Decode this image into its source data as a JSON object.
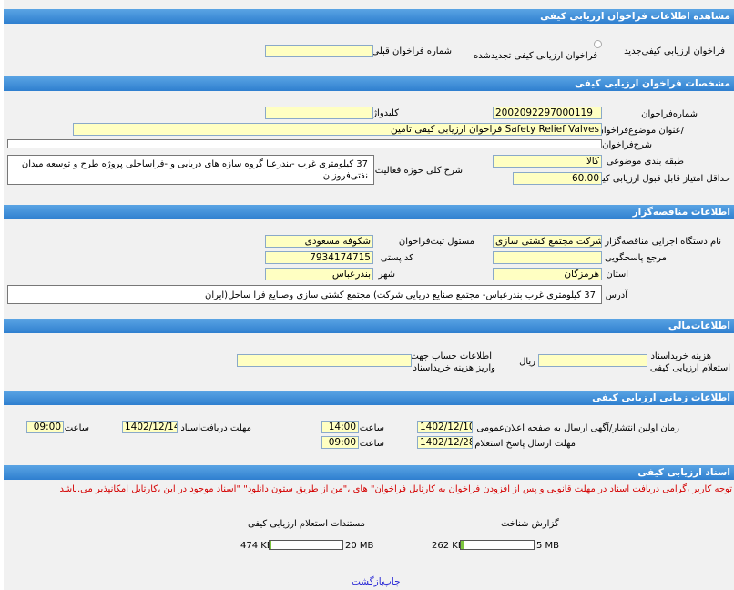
{
  "sections": {
    "view_title": "مشاهده اطلاعات فراخوان ارزیابی کیفی",
    "specs": "مشخصات فراخوان ارزیابی کیفی",
    "tenderer": "اطلاعات مناقصه‌گزار",
    "financial": "اطلاعات‌مالی",
    "timing": "اطلاعات زمانی ارزیابی کیفی",
    "documents": "اسناد ارزیابی کیفی"
  },
  "call_type": {
    "new_label": "فراخوان ارزیابی کیفی‌جدید",
    "renewed_label": "فراخوان ارزیابی کیفی تجدیدشده",
    "prev_number_label": "شماره فراخوان قبلی",
    "prev_number_value": ""
  },
  "specs": {
    "number_label": "شماره‌فراخوان",
    "number_value": "2002092297000119",
    "keyword_label": "کلیدواژه",
    "keyword_value": "",
    "title_label": "/عنوان موضوع‌فراخوان",
    "title_value": "فراخوان ارزیابی کیفی تامین Safety Relief Valves",
    "desc_label": "شرح‌فراخوان",
    "desc_value": "",
    "category_label": "طبقه بندی موضوعی",
    "category_value": "کالا",
    "scope_label": "شرح کلی حوزه فعالیت",
    "scope_value": "37 کیلومتری غرب -بندرعبا گروه سازه های دریایی و -فراساحلی پروژه طرح و توسعه میدان نفتی‌فروزان",
    "min_score_label": "حداقل امتیاز قابل قبول ارزیابی کیفی",
    "min_score_value": "60.00"
  },
  "tenderer": {
    "org_label": "نام دستگاه اجرایی مناقصه‌گزار",
    "org_value": "شرکت مجتمع کشتی سازی",
    "official_label": "مسئول ثبت‌فراخوان",
    "official_value": "شکوفه مسعودی",
    "ref_label": "مرجع پاسخگویی",
    "ref_value": "",
    "postal_label": "کد پستی",
    "postal_value": "7934174715",
    "province_label": "استان",
    "province_value": "هرمزگان",
    "city_label": "شهر",
    "city_value": "بندرعباس",
    "address_label": "آدرس",
    "address_value": "37 کیلومتری غرب بندرعباس- مجتمع صنایع دریایی شرکت) مجتمع کشتی سازی وصنایع فرا ساحل(ایران"
  },
  "financial": {
    "fee_label_1": "هزینه خریداسناد",
    "fee_label_2": "استعلام ارزیابی کیفی",
    "fee_value": "",
    "currency": "ریال",
    "account_label_1": "اطلاعات حساب جهت",
    "account_label_2": "واریز هزینه خریداسناد",
    "account_value": ""
  },
  "timing": {
    "publish_label": "زمان اولین انتشار/آگهی ارسال به صفحه اعلان‌عمومی",
    "publish_date": "1402/12/10",
    "publish_time": "14:00",
    "reply_label": "مهلت ارسال پاسخ استعلام",
    "reply_date": "1402/12/28",
    "reply_time": "09:00",
    "receive_label": "مهلت دریافت‌اسناد",
    "receive_date": "1402/12/14",
    "receive_time": "09:00",
    "time_label": "ساعت"
  },
  "documents": {
    "notice": "توجه کاربر ،گرامی دریافت اسناد در مهلت قانونی و پس از افزودن فراخوان به کارتابل فراخوان\" های ،\"من از طریق ستون دانلود\" \"اسناد موجود در این ،کارتابل امکانپذیر می.باشد",
    "report_title": "گزارش شناخت",
    "report_size": "262 KB",
    "report_limit": "5 MB",
    "report_progress": 0.05,
    "docs_title": "مستندات استعلام ارزیابی کیفی",
    "docs_size": "474 KB",
    "docs_limit": "20 MB",
    "docs_progress": 0.03
  },
  "footer": {
    "print_label": "چاپ",
    "back_label": "بازگشت"
  }
}
